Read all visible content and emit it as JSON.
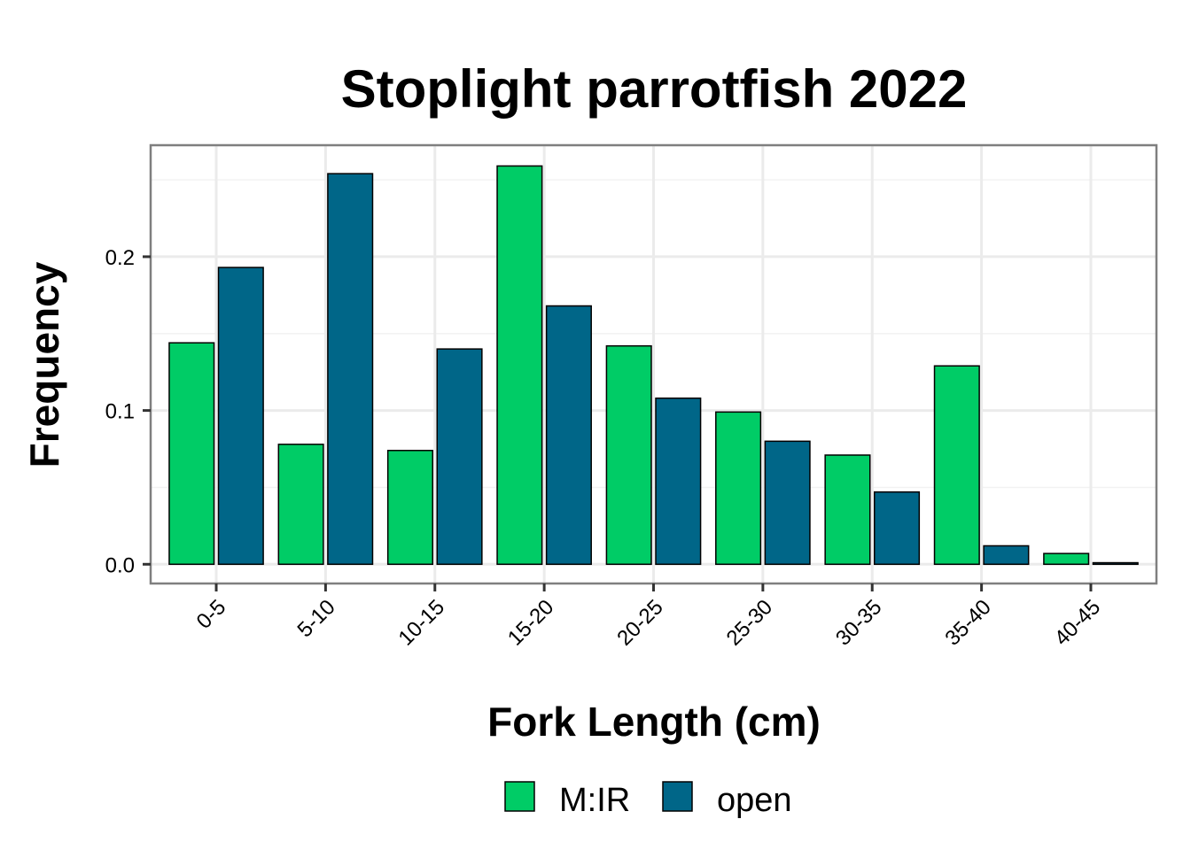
{
  "chart_data": {
    "type": "bar",
    "title": "Stoplight parrotfish 2022",
    "xlabel": "Fork Length (cm)",
    "ylabel": "Frequency",
    "categories": [
      "0-5",
      "5-10",
      "10-15",
      "15-20",
      "20-25",
      "25-30",
      "30-35",
      "35-40",
      "40-45"
    ],
    "series": [
      {
        "name": "M:IR",
        "color": "#00CC66",
        "values": [
          0.144,
          0.078,
          0.074,
          0.259,
          0.142,
          0.099,
          0.071,
          0.129,
          0.007
        ]
      },
      {
        "name": "open",
        "color": "#006688",
        "values": [
          0.193,
          0.254,
          0.14,
          0.168,
          0.108,
          0.08,
          0.047,
          0.012,
          0.001
        ]
      }
    ],
    "ylim": [
      -0.0125,
      0.2725
    ],
    "yticks": [
      0.0,
      0.1,
      0.2
    ],
    "ytick_labels": [
      "0.0",
      "0.1",
      "0.2"
    ],
    "grid": true,
    "legend_position": "bottom"
  }
}
